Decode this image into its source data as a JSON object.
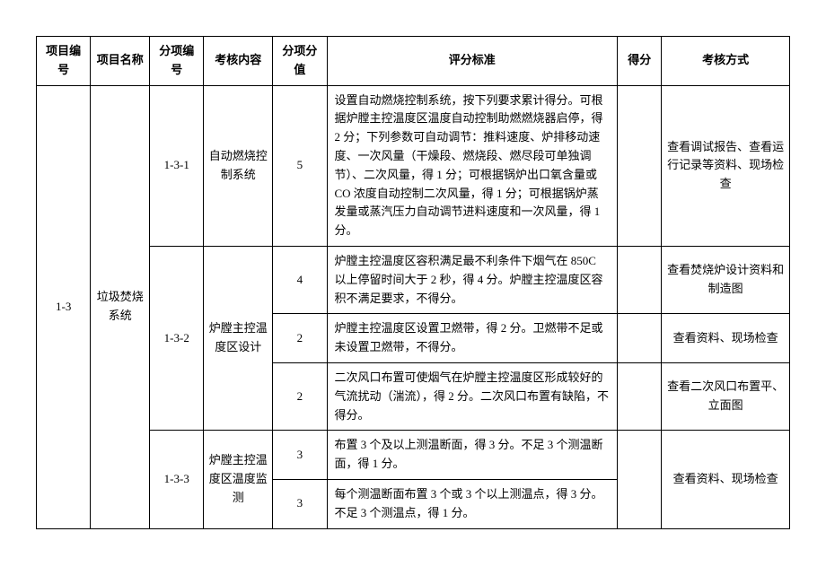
{
  "headers": {
    "project_no": "项目编号",
    "project_name": "项目名称",
    "sub_no": "分项编号",
    "content": "考核内容",
    "score_value": "分项分值",
    "criteria": "评分标准",
    "score": "得分",
    "method": "考核方式"
  },
  "row1": {
    "project_no": "1-3",
    "project_name": "垃圾焚烧系统",
    "sub_no": "1-3-1",
    "content": "自动燃烧控制系统",
    "value": "5",
    "criteria": "设置自动燃烧控制系统，按下列要求累计得分。可根据炉膛主控温度区温度自动控制助燃燃烧器启停，得 2 分；下列参数可自动调节：推料速度、炉排移动速度、一次风量（干燥段、燃烧段、燃尽段可单独调节）、二次风量，得 1 分；可根据锅炉出口氧含量或 CO 浓度自动控制二次风量，得 1 分；可根据锅炉蒸发量或蒸汽压力自动调节进料速度和一次风量，得 1 分。",
    "method": "查看调试报告、查看运行记录等资料、现场检查"
  },
  "row2": {
    "sub_no": "1-3-2",
    "content": "炉膛主控温度区设计",
    "value_a": "4",
    "criteria_a": "炉膛主控温度区容积满足最不利条件下烟气在 850C 以上停留时间大于 2 秒，得 4 分。炉膛主控温度区容积不满足要求，不得分。",
    "method_a": "查看焚烧炉设计资料和制造图",
    "value_b": "2",
    "criteria_b": "炉膛主控温度区设置卫燃带，得 2 分。卫燃带不足或未设置卫燃带，不得分。",
    "method_b": "查看资料、现场检查",
    "value_c": "2",
    "criteria_c": "二次风口布置可使烟气在炉膛主控温度区形成较好的气流扰动（湍流），得 2 分。二次风口布置有缺陷，不得分。",
    "method_c": "查看二次风口布置平、立面图"
  },
  "row3": {
    "sub_no": "1-3-3",
    "content": "炉膛主控温度区温度监测",
    "value_a": "3",
    "criteria_a": "布置 3 个及以上测温断面，得 3 分。不足 3 个测温断面，得 1 分。",
    "value_b": "3",
    "criteria_b": "每个测温断面布置 3 个或 3 个以上测温点，得 3 分。不足 3 个测温点，得 1 分。",
    "method": "查看资料、现场检查"
  }
}
